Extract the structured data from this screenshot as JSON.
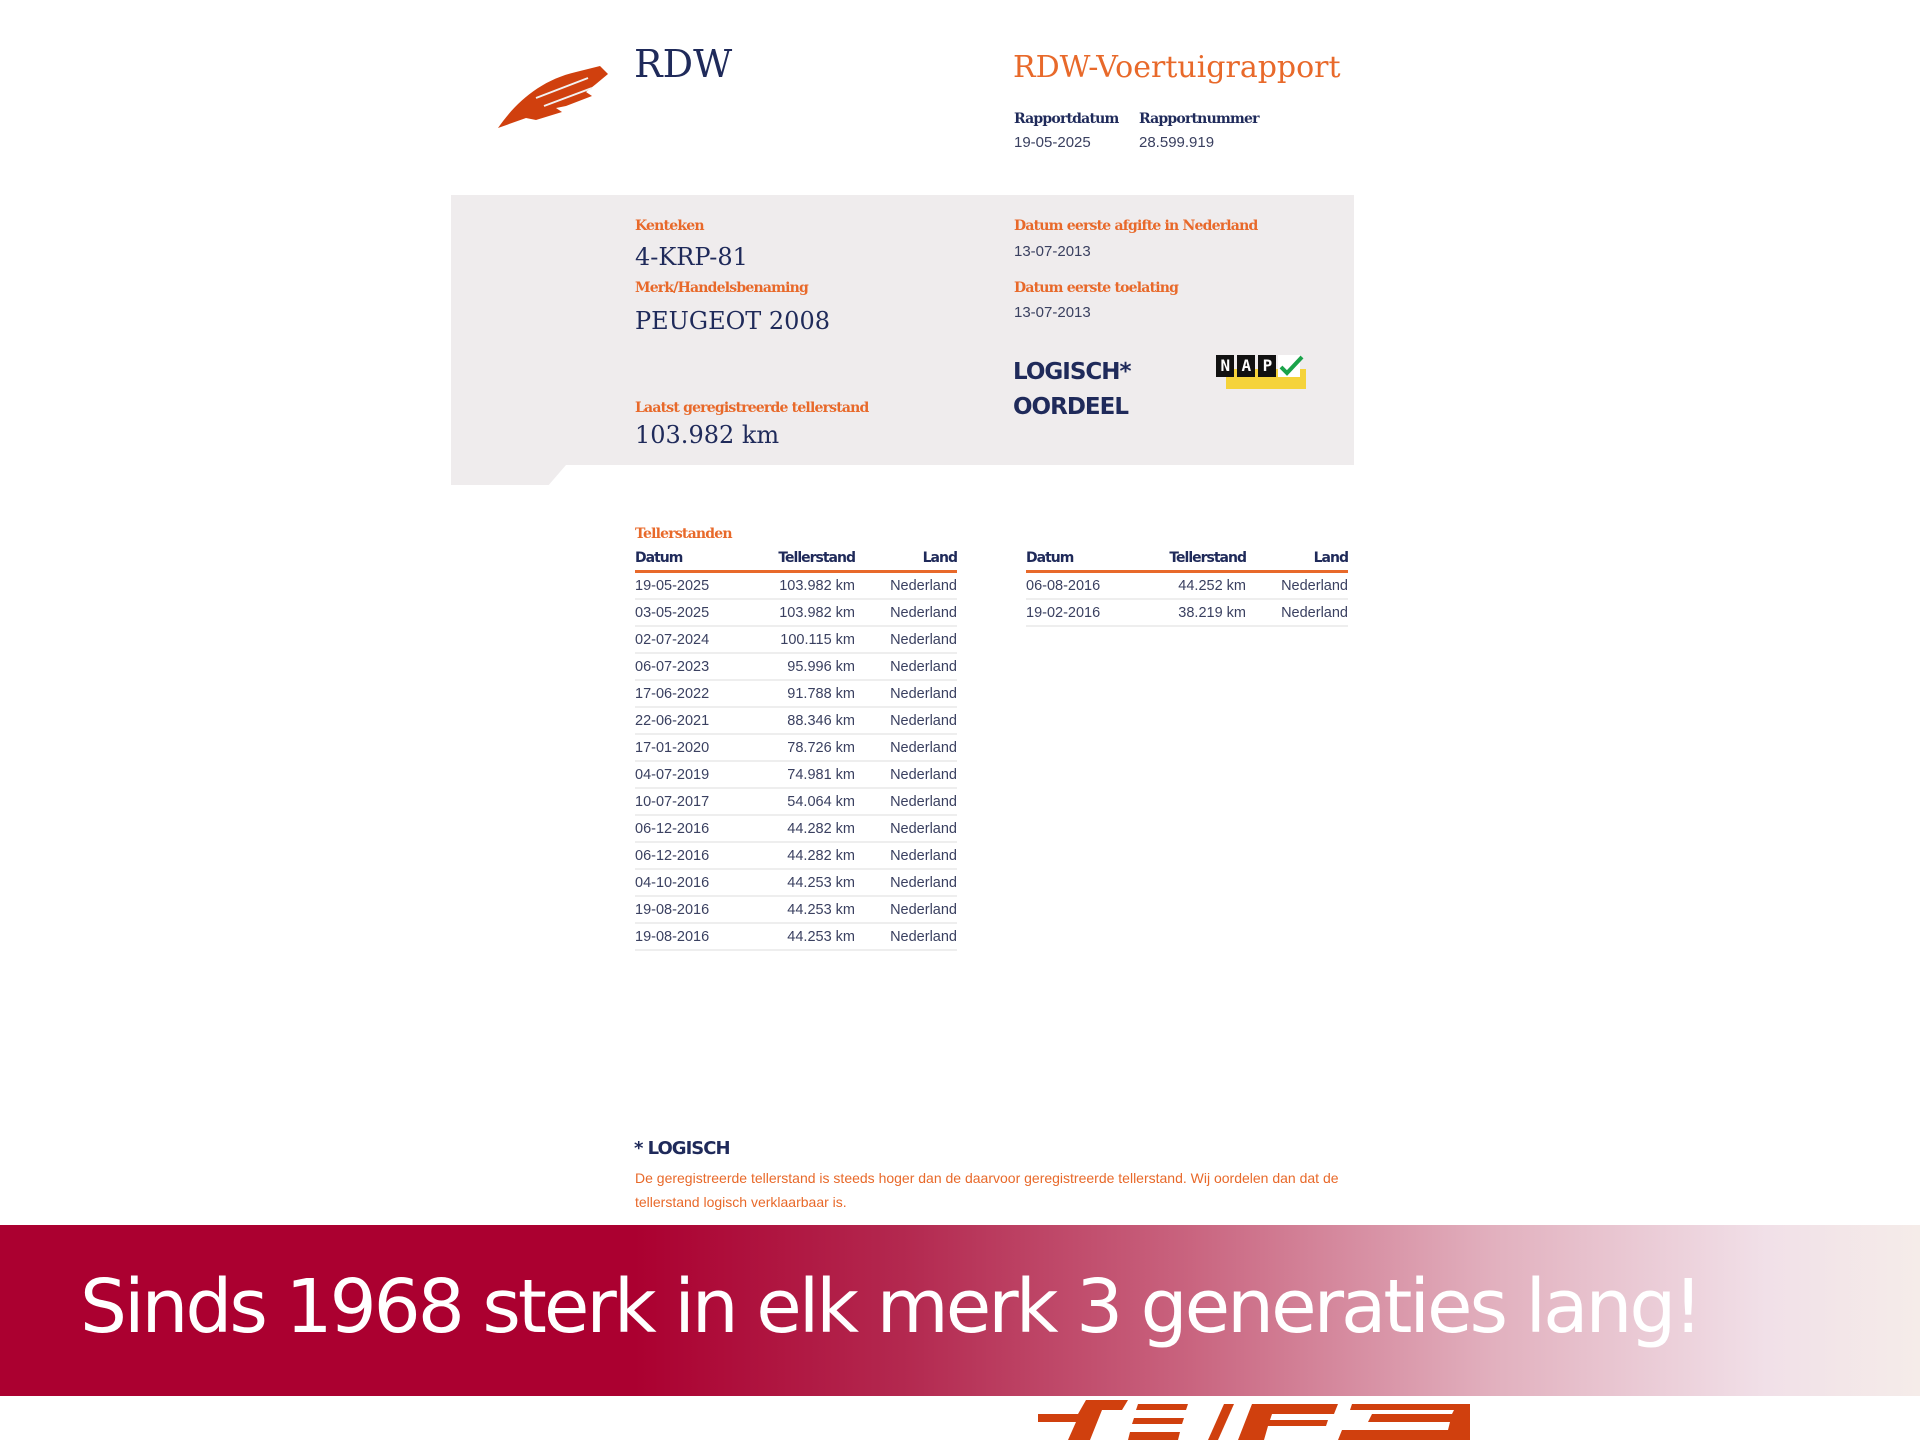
{
  "header": {
    "org": "RDW",
    "title": "RDW-Voertuigrapport",
    "rapportdatum_label": "Rapportdatum",
    "rapportdatum": "19-05-2025",
    "rapportnummer_label": "Rapportnummer",
    "rapportnummer": "28.599.919"
  },
  "vehicle": {
    "kenteken_label": "Kenteken",
    "kenteken": "4-KRP-81",
    "merk_label": "Merk/Handelsbenaming",
    "merk": "PEUGEOT 2008",
    "afgifte_label": "Datum eerste afgifte in Nederland",
    "afgifte": "13-07-2013",
    "toelating_label": "Datum eerste toelating",
    "toelating": "13-07-2013",
    "verdict": "LOGISCH*",
    "verdict_label": "OORDEEL",
    "nap_badge": "NAP",
    "laatst_label": "Laatst geregistreerde tellerstand",
    "laatst": "103.982 km"
  },
  "tellerstanden": {
    "title": "Tellerstanden",
    "columns": [
      "Datum",
      "Tellerstand",
      "Land"
    ],
    "left_rows": [
      [
        "19-05-2025",
        "103.982 km",
        "Nederland"
      ],
      [
        "03-05-2025",
        "103.982 km",
        "Nederland"
      ],
      [
        "02-07-2024",
        "100.115 km",
        "Nederland"
      ],
      [
        "06-07-2023",
        "95.996 km",
        "Nederland"
      ],
      [
        "17-06-2022",
        "91.788 km",
        "Nederland"
      ],
      [
        "22-06-2021",
        "88.346 km",
        "Nederland"
      ],
      [
        "17-01-2020",
        "78.726 km",
        "Nederland"
      ],
      [
        "04-07-2019",
        "74.981 km",
        "Nederland"
      ],
      [
        "10-07-2017",
        "54.064 km",
        "Nederland"
      ],
      [
        "06-12-2016",
        "44.282 km",
        "Nederland"
      ],
      [
        "06-12-2016",
        "44.282 km",
        "Nederland"
      ],
      [
        "04-10-2016",
        "44.253 km",
        "Nederland"
      ],
      [
        "19-08-2016",
        "44.253 km",
        "Nederland"
      ],
      [
        "19-08-2016",
        "44.253 km",
        "Nederland"
      ]
    ],
    "right_rows": [
      [
        "06-08-2016",
        "44.252 km",
        "Nederland"
      ],
      [
        "19-02-2016",
        "38.219 km",
        "Nederland"
      ]
    ]
  },
  "footnote": {
    "title": "* LOGISCH",
    "text": "De geregistreerde tellerstand is steeds hoger dan de daarvoor geregistreerde tellerstand. Wij oordelen dan dat de tellerstand logisch verklaarbaar is."
  },
  "banner": {
    "text": "Sinds 1968 sterk in elk merk 3 generaties lang!"
  },
  "colors": {
    "accent": "#e8692a",
    "navy": "#1f2a5a",
    "banner": "#ab0030",
    "panel": "#efeced"
  }
}
